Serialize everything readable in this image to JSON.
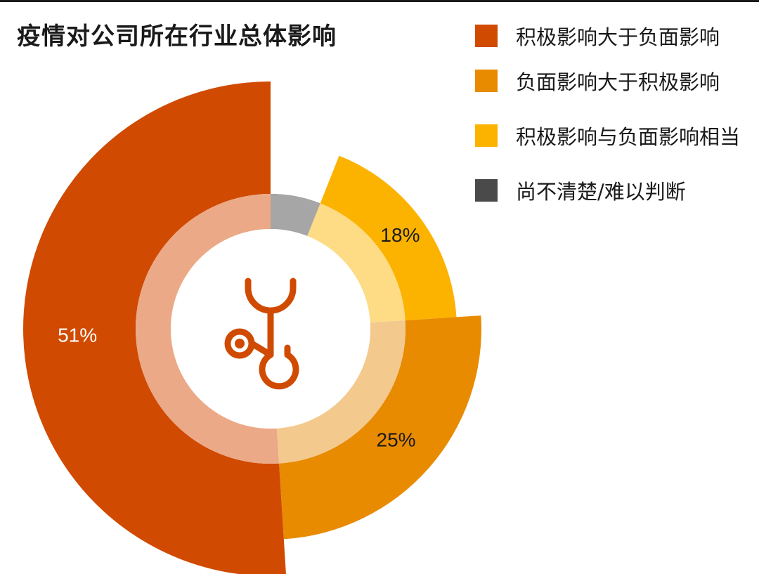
{
  "title": "疫情对公司所在行业总体影响",
  "chart_data": {
    "type": "pie",
    "title": "疫情对公司所在行业总体影响",
    "series": [
      {
        "name": "尚不清楚/难以判断",
        "value": 6,
        "label": "6%",
        "color": "#4a4a4a",
        "inner_color": "#a6a6a6",
        "label_color": "#ffffff"
      },
      {
        "name": "积极影响与负面影响相当",
        "value": 18,
        "label": "18%",
        "color": "#fbb300",
        "inner_color": "#fedb85",
        "label_color": "#1a1a1a"
      },
      {
        "name": "负面影响大于积极影响",
        "value": 25,
        "label": "25%",
        "color": "#e88b00",
        "inner_color": "#f3c98e",
        "label_color": "#1a1a1a"
      },
      {
        "name": "积极影响大于负面影响",
        "value": 51,
        "label": "51%",
        "color": "#d04a02",
        "inner_color": "#eca987",
        "label_color": "#ffffff"
      }
    ],
    "center_icon": "stethoscope-icon",
    "icon_color": "#d04a02"
  },
  "legend": [
    {
      "label": "积极影响大于负面影响",
      "color": "#d04a02"
    },
    {
      "label": "负面影响大于积极影响",
      "color": "#e88b00"
    },
    {
      "label": "积极影响与负面影响相当",
      "color": "#fbb300"
    },
    {
      "label": "尚不清楚/难以判断",
      "color": "#4a4a4a"
    }
  ]
}
